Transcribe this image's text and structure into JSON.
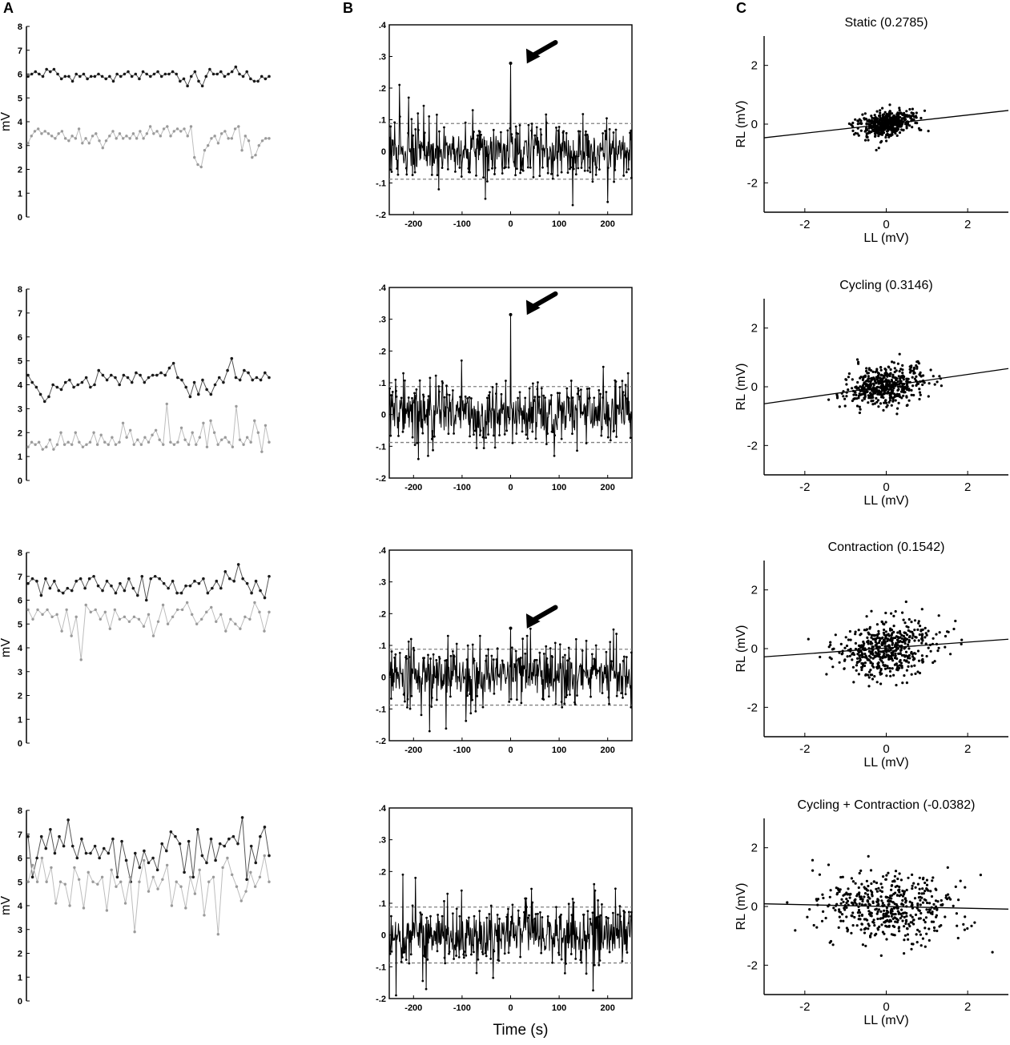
{
  "panel_labels": [
    "A",
    "B",
    "C"
  ],
  "column_b_xlabel": "Time (s)",
  "colors": {
    "dark_series": "#1a1a1a",
    "light_series": "#9a9a9a",
    "light_line": "#bdbdbd",
    "threshold": "#808080"
  },
  "chart_data": [
    {
      "type": "line",
      "panel": "A",
      "row": 1,
      "ylabel": "mV",
      "ylim": [
        0,
        8
      ],
      "yticks": [
        0,
        1,
        2,
        3,
        4,
        5,
        6,
        7,
        8
      ],
      "series": [
        {
          "values": [
            5.9,
            6.0,
            6.1,
            6.0,
            5.9,
            6.2,
            6.1,
            6.2,
            6.0,
            5.8,
            5.9,
            5.9,
            5.7,
            6.0,
            5.9,
            6.0,
            5.8,
            5.9,
            5.9,
            6.0,
            5.9,
            5.8,
            5.9,
            5.7,
            6.0,
            5.9,
            6.0,
            6.1,
            5.9,
            6.0,
            5.8,
            6.1,
            6.0,
            5.9,
            6.0,
            6.1,
            5.9,
            6.0,
            6.0,
            6.1,
            6.0,
            5.7,
            5.8,
            5.5,
            5.9,
            6.1,
            5.7,
            5.5,
            5.9,
            6.2,
            6.0,
            6.0,
            6.1,
            5.9,
            6.0,
            6.1,
            6.3,
            6.0,
            5.9,
            6.1,
            5.8,
            5.7,
            5.7,
            5.9,
            5.8,
            5.9
          ]
        },
        {
          "values": [
            3.1,
            3.4,
            3.6,
            3.7,
            3.5,
            3.6,
            3.5,
            3.4,
            3.3,
            3.5,
            3.6,
            3.3,
            3.2,
            3.4,
            3.3,
            3.7,
            3.1,
            3.3,
            3.1,
            3.4,
            3.5,
            3.2,
            2.9,
            3.2,
            3.4,
            3.6,
            3.3,
            3.5,
            3.3,
            3.4,
            3.3,
            3.5,
            3.3,
            3.6,
            3.3,
            3.5,
            3.8,
            3.5,
            3.6,
            3.4,
            3.7,
            3.8,
            3.4,
            3.6,
            3.7,
            3.6,
            3.7,
            3.4,
            3.8,
            2.5,
            2.2,
            2.1,
            2.8,
            3.0,
            3.3,
            3.4,
            3.1,
            3.5,
            3.6,
            3.3,
            3.3,
            3.7,
            3.8,
            2.8,
            3.4,
            3.2,
            2.5,
            2.6,
            3.0,
            3.2,
            3.3,
            3.3
          ]
        }
      ]
    },
    {
      "type": "line",
      "panel": "A",
      "row": 2,
      "ylabel": "",
      "ylim": [
        0,
        8
      ],
      "yticks": [
        0,
        1,
        2,
        3,
        4,
        5,
        6,
        7,
        8
      ],
      "series": [
        {
          "values": [
            4.4,
            4.1,
            3.9,
            3.6,
            3.3,
            3.5,
            4.0,
            3.9,
            3.8,
            4.1,
            4.2,
            3.9,
            4.0,
            4.1,
            4.3,
            3.9,
            4.0,
            4.6,
            4.4,
            4.2,
            4.4,
            4.3,
            4.0,
            4.4,
            4.3,
            4.1,
            4.5,
            4.4,
            4.1,
            4.3,
            4.4,
            4.4,
            4.5,
            4.4,
            4.7,
            4.9,
            4.3,
            4.2,
            3.9,
            3.5,
            4.1,
            3.6,
            4.2,
            3.8,
            3.6,
            4.0,
            4.3,
            4.1,
            4.6,
            5.1,
            4.3,
            4.2,
            4.6,
            4.5,
            4.2,
            4.3,
            4.2,
            4.5,
            4.3
          ]
        },
        {
          "values": [
            1.4,
            1.6,
            1.5,
            1.6,
            1.3,
            1.4,
            1.7,
            1.3,
            1.5,
            2.0,
            1.5,
            1.6,
            1.5,
            2.0,
            1.6,
            1.4,
            1.5,
            1.6,
            2.0,
            1.5,
            1.9,
            1.6,
            1.5,
            1.8,
            1.5,
            1.6,
            2.4,
            1.8,
            2.1,
            1.5,
            1.7,
            1.5,
            1.8,
            1.6,
            1.9,
            2.1,
            1.7,
            1.5,
            3.2,
            1.6,
            1.5,
            1.6,
            2.2,
            1.7,
            1.5,
            2.0,
            1.5,
            1.8,
            2.4,
            1.4,
            2.5,
            2.0,
            1.5,
            1.7,
            1.8,
            1.6,
            1.4,
            3.1,
            1.7,
            1.5,
            1.8,
            1.6,
            2.5,
            2.0,
            1.2,
            2.3,
            1.6
          ]
        }
      ]
    },
    {
      "type": "line",
      "panel": "A",
      "row": 3,
      "ylabel": "mV",
      "ylim": [
        0,
        8
      ],
      "yticks": [
        0,
        1,
        2,
        3,
        4,
        5,
        6,
        7,
        8
      ],
      "series": [
        {
          "values": [
            6.7,
            6.9,
            6.8,
            6.2,
            6.9,
            6.5,
            6.8,
            6.4,
            6.3,
            6.5,
            6.4,
            6.8,
            6.9,
            6.5,
            6.9,
            7.0,
            6.6,
            6.4,
            6.8,
            6.6,
            6.3,
            6.7,
            6.4,
            6.9,
            6.5,
            6.2,
            7.0,
            6.0,
            6.9,
            7.0,
            6.9,
            6.7,
            6.5,
            6.8,
            6.3,
            6.3,
            6.6,
            6.6,
            6.8,
            6.7,
            6.9,
            6.3,
            6.5,
            6.8,
            6.5,
            7.2,
            6.9,
            6.8,
            7.5,
            6.9,
            6.7,
            6.3,
            6.8,
            6.4,
            6.1,
            7.0
          ]
        },
        {
          "values": [
            5.6,
            5.2,
            5.6,
            5.4,
            5.6,
            5.3,
            5.4,
            4.7,
            5.6,
            4.5,
            5.3,
            3.5,
            5.8,
            5.5,
            5.6,
            5.2,
            5.5,
            4.8,
            5.6,
            5.2,
            5.3,
            5.1,
            5.3,
            5.2,
            4.9,
            5.4,
            4.5,
            5.1,
            5.8,
            5.0,
            5.3,
            5.6,
            5.6,
            5.9,
            5.4,
            5.0,
            5.2,
            5.5,
            5.7,
            5.1,
            5.4,
            4.7,
            5.2,
            5.0,
            4.8,
            5.3,
            5.2,
            5.9,
            5.5,
            4.7,
            5.5
          ]
        }
      ]
    },
    {
      "type": "line",
      "panel": "A",
      "row": 4,
      "ylabel": "mV",
      "ylim": [
        0,
        8
      ],
      "yticks": [
        0,
        1,
        2,
        3,
        4,
        5,
        6,
        7,
        8
      ],
      "series": [
        {
          "values": [
            6.9,
            5.2,
            6.0,
            6.9,
            6.4,
            7.2,
            6.2,
            6.9,
            6.5,
            7.6,
            6.5,
            6.0,
            6.8,
            6.2,
            6.2,
            6.5,
            6.0,
            6.4,
            6.2,
            6.8,
            5.2,
            6.7,
            5.9,
            5.0,
            6.2,
            5.6,
            6.3,
            5.8,
            6.0,
            5.5,
            6.6,
            6.3,
            7.1,
            6.9,
            6.6,
            5.4,
            6.7,
            5.2,
            7.2,
            6.1,
            5.8,
            6.8,
            5.9,
            6.6,
            6.5,
            6.8,
            6.9,
            6.6,
            7.7,
            5.1,
            6.5,
            5.8,
            6.9,
            7.3,
            6.1
          ]
        },
        {
          "values": [
            5.0,
            5.7,
            5.0,
            6.0,
            5.0,
            5.6,
            4.1,
            5.0,
            4.9,
            4.0,
            5.6,
            5.1,
            3.9,
            5.4,
            5.0,
            4.9,
            5.2,
            3.8,
            5.5,
            4.8,
            5.0,
            4.1,
            5.2,
            2.9,
            5.0,
            5.9,
            4.6,
            5.2,
            4.7,
            5.1,
            5.7,
            4.0,
            5.0,
            4.8,
            3.9,
            5.2,
            4.5,
            5.5,
            3.6,
            5.0,
            5.2,
            2.8,
            5.6,
            6.0,
            5.3,
            4.8,
            4.2,
            4.6,
            5.4,
            4.8,
            5.2,
            6.1,
            5.0
          ]
        }
      ]
    },
    {
      "type": "line",
      "panel": "B",
      "row": 1,
      "xlabel": "",
      "ylabel": "",
      "xlim": [
        -250,
        250
      ],
      "ylim": [
        -0.2,
        0.4
      ],
      "xticks": [
        -200,
        -100,
        0,
        100,
        200
      ],
      "yticks": [
        -0.2,
        -0.1,
        0,
        0.1,
        0.2,
        0.3,
        0.4
      ],
      "thresholds": [
        0.088,
        -0.088
      ],
      "n_points": 501,
      "peaks": [
        {
          "x": 0,
          "y": 0.2785
        }
      ],
      "extra_spikes": [
        [
          -229,
          0.21
        ],
        [
          -210,
          0.17
        ],
        [
          -191,
          0.12
        ],
        [
          -148,
          -0.12
        ],
        [
          -78,
          0.13
        ],
        [
          -52,
          -0.15
        ],
        [
          74,
          0.09
        ],
        [
          128,
          -0.17
        ],
        [
          200,
          -0.16
        ]
      ],
      "noise_amplitude": 0.045,
      "arrow": true
    },
    {
      "type": "line",
      "panel": "B",
      "row": 2,
      "xlabel": "",
      "ylabel": "",
      "xlim": [
        -250,
        250
      ],
      "ylim": [
        -0.2,
        0.4
      ],
      "xticks": [
        -200,
        -100,
        0,
        100,
        200
      ],
      "yticks": [
        -0.2,
        -0.1,
        0,
        0.1,
        0.2,
        0.3,
        0.4
      ],
      "thresholds": [
        0.088,
        -0.088
      ],
      "n_points": 501,
      "peaks": [
        {
          "x": 0,
          "y": 0.3146
        }
      ],
      "extra_spikes": [
        [
          -101,
          0.17
        ],
        [
          -221,
          0.13
        ],
        [
          -190,
          -0.14
        ],
        [
          -170,
          -0.13
        ],
        [
          90,
          -0.13
        ],
        [
          242,
          0.13
        ]
      ],
      "noise_amplitude": 0.05,
      "arrow": true
    },
    {
      "type": "line",
      "panel": "B",
      "row": 3,
      "xlabel": "",
      "ylabel": "",
      "xlim": [
        -250,
        250
      ],
      "ylim": [
        -0.2,
        0.4
      ],
      "xticks": [
        -200,
        -100,
        0,
        100,
        200
      ],
      "yticks": [
        -0.2,
        -0.1,
        0,
        0.1,
        0.2,
        0.3,
        0.4
      ],
      "thresholds": [
        0.088,
        -0.088
      ],
      "n_points": 501,
      "peaks": [
        {
          "x": 0,
          "y": 0.1542
        }
      ],
      "extra_spikes": [
        [
          -167,
          -0.17
        ],
        [
          -205,
          0.12
        ],
        [
          -63,
          0.13
        ],
        [
          34,
          0.13
        ],
        [
          212,
          0.15
        ],
        [
          -129,
          0.13
        ]
      ],
      "noise_amplitude": 0.05,
      "arrow": true
    },
    {
      "type": "line",
      "panel": "B",
      "row": 4,
      "xlabel": "",
      "ylabel": "",
      "xlim": [
        -250,
        250
      ],
      "ylim": [
        -0.2,
        0.4
      ],
      "xticks": [
        -200,
        -100,
        0,
        100,
        200
      ],
      "yticks": [
        -0.2,
        -0.1,
        0,
        0.1,
        0.2,
        0.3,
        0.4
      ],
      "thresholds": [
        0.088,
        -0.088
      ],
      "n_points": 501,
      "peaks": [],
      "extra_spikes": [
        [
          -236,
          -0.19
        ],
        [
          -222,
          0.19
        ],
        [
          -196,
          0.18
        ],
        [
          -174,
          -0.17
        ],
        [
          -130,
          0.13
        ],
        [
          -101,
          0.14
        ],
        [
          172,
          0.16
        ],
        [
          174,
          0.14
        ]
      ],
      "noise_amplitude": 0.05,
      "arrow": false
    },
    {
      "type": "scatter",
      "panel": "C",
      "row": 1,
      "title": "Static (0.2785)",
      "xlabel": "LL (mV)",
      "ylabel": "RL (mV)",
      "xlim": [
        -3,
        3
      ],
      "ylim": [
        -3,
        3
      ],
      "xticks": [
        -2,
        0,
        2
      ],
      "yticks": [
        -2,
        0,
        2
      ],
      "n_points": 480,
      "center": [
        0.0,
        0.0
      ],
      "spread": [
        0.35,
        0.22
      ],
      "correlation": 0.28,
      "fit_line": {
        "slope": 0.155,
        "intercept": 0.0
      }
    },
    {
      "type": "scatter",
      "panel": "C",
      "row": 2,
      "title": "Cycling (0.3146)",
      "xlabel": "LL (mV)",
      "ylabel": "RL (mV)",
      "xlim": [
        -3,
        3
      ],
      "ylim": [
        -3,
        3
      ],
      "xticks": [
        -2,
        0,
        2
      ],
      "yticks": [
        -2,
        0,
        2
      ],
      "n_points": 500,
      "center": [
        0.0,
        0.05
      ],
      "spread": [
        0.45,
        0.35
      ],
      "correlation": 0.32,
      "fit_line": {
        "slope": 0.2,
        "intercept": 0.02
      }
    },
    {
      "type": "scatter",
      "panel": "C",
      "row": 3,
      "title": "Contraction (0.1542)",
      "xlabel": "LL (mV)",
      "ylabel": "RL (mV)",
      "xlim": [
        -3,
        3
      ],
      "ylim": [
        -3,
        3
      ],
      "xticks": [
        -2,
        0,
        2
      ],
      "yticks": [
        -2,
        0,
        2
      ],
      "n_points": 500,
      "center": [
        0.0,
        0.0
      ],
      "spread": [
        0.6,
        0.5
      ],
      "correlation": 0.15,
      "fit_line": {
        "slope": 0.1,
        "intercept": 0.02
      }
    },
    {
      "type": "scatter",
      "panel": "C",
      "row": 4,
      "title": "Cycling + Contraction (-0.0382)",
      "xlabel": "LL (mV)",
      "ylabel": "RL (mV)",
      "xlim": [
        -3,
        3
      ],
      "ylim": [
        -3,
        3
      ],
      "xticks": [
        -2,
        0,
        2
      ],
      "yticks": [
        -2,
        0,
        2
      ],
      "n_points": 500,
      "center": [
        0.0,
        0.0
      ],
      "spread": [
        0.8,
        0.6
      ],
      "correlation": -0.04,
      "fit_line": {
        "slope": -0.03,
        "intercept": 0.0
      }
    }
  ]
}
